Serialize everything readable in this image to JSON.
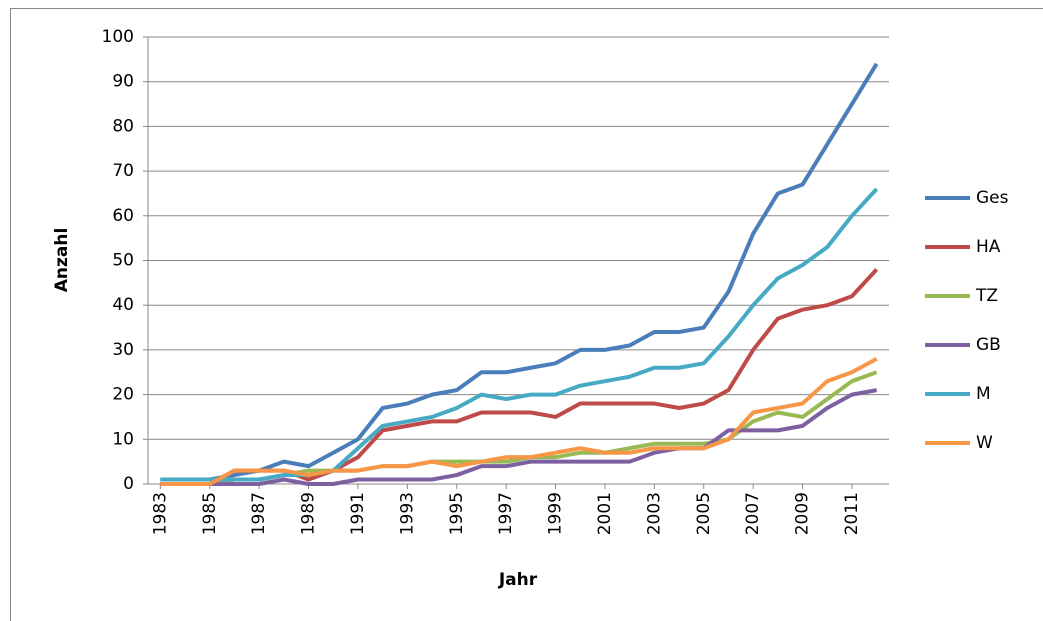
{
  "chart_data": {
    "type": "line",
    "x_label": "Jahr",
    "y_label": "Anzahl",
    "x": [
      1983,
      1984,
      1985,
      1986,
      1987,
      1988,
      1989,
      1990,
      1991,
      1992,
      1993,
      1994,
      1995,
      1996,
      1997,
      1998,
      1999,
      2000,
      2001,
      2002,
      2003,
      2004,
      2005,
      2006,
      2007,
      2008,
      2009,
      2010,
      2011,
      2012
    ],
    "xlim": [
      1982.5,
      2012.5
    ],
    "xticks": [
      1983,
      1985,
      1987,
      1989,
      1991,
      1993,
      1995,
      1997,
      1999,
      2001,
      2003,
      2005,
      2007,
      2009,
      2011
    ],
    "ylim": [
      0,
      100
    ],
    "yticks": [
      0,
      10,
      20,
      30,
      40,
      50,
      60,
      70,
      80,
      90,
      100
    ],
    "grid": true,
    "legend": "right",
    "series": [
      {
        "name": "Ges",
        "color": "#4a7ebb",
        "values": [
          1,
          1,
          1,
          2,
          3,
          5,
          4,
          7,
          10,
          17,
          18,
          20,
          21,
          25,
          25,
          26,
          27,
          30,
          30,
          31,
          34,
          34,
          35,
          43,
          56,
          65,
          67,
          76,
          85,
          94
        ]
      },
      {
        "name": "HA",
        "color": "#be4b48",
        "values": [
          0,
          0,
          0,
          3,
          3,
          3,
          1,
          3,
          6,
          12,
          13,
          14,
          14,
          16,
          16,
          16,
          15,
          18,
          18,
          18,
          18,
          17,
          18,
          21,
          30,
          37,
          39,
          40,
          42,
          48
        ]
      },
      {
        "name": "TZ",
        "color": "#98b954",
        "values": [
          0,
          0,
          0,
          1,
          1,
          2,
          3,
          3,
          3,
          4,
          4,
          5,
          5,
          5,
          5,
          6,
          6,
          7,
          7,
          8,
          9,
          9,
          9,
          10,
          14,
          16,
          15,
          19,
          23,
          25
        ]
      },
      {
        "name": "GB",
        "color": "#7d60a0",
        "values": [
          0,
          0,
          0,
          0,
          0,
          1,
          0,
          0,
          1,
          1,
          1,
          1,
          2,
          4,
          4,
          5,
          5,
          5,
          5,
          5,
          7,
          8,
          8,
          12,
          12,
          12,
          13,
          17,
          20,
          21
        ]
      },
      {
        "name": "M",
        "color": "#46aac5",
        "values": [
          1,
          1,
          1,
          1,
          1,
          2,
          2,
          3,
          8,
          13,
          14,
          15,
          17,
          20,
          19,
          20,
          20,
          22,
          23,
          24,
          26,
          26,
          27,
          33,
          40,
          46,
          49,
          53,
          60,
          66
        ]
      },
      {
        "name": "W",
        "color": "#f79646",
        "values": [
          0,
          0,
          0,
          3,
          3,
          3,
          2,
          3,
          3,
          4,
          4,
          5,
          4,
          5,
          6,
          6,
          7,
          8,
          7,
          7,
          8,
          8,
          8,
          10,
          16,
          17,
          18,
          23,
          25,
          28
        ]
      }
    ]
  }
}
